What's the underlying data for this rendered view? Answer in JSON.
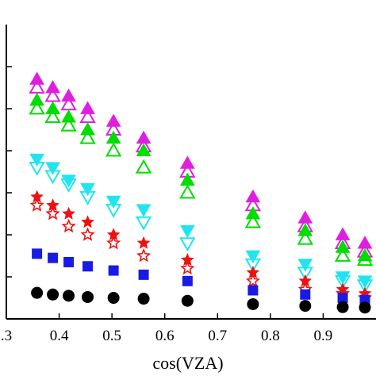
{
  "chart_data": {
    "type": "scatter",
    "xlabel": "cos(VZA)",
    "ylabel": "",
    "xlim": [
      0.3,
      1.0
    ],
    "ylim": [
      0.0,
      0.7
    ],
    "x_ticks": [
      0.3,
      0.4,
      0.5,
      0.6,
      0.7,
      0.8,
      0.9
    ],
    "x_tick_labels": [
      ".3",
      "0.4",
      "0.5",
      "0.6",
      "0.7",
      "0.8",
      "0.9"
    ],
    "y_ticks": [
      0.1,
      0.2,
      0.3,
      0.4,
      0.5,
      0.6
    ],
    "grid": false,
    "x": [
      0.358,
      0.388,
      0.418,
      0.454,
      0.503,
      0.56,
      0.643,
      0.767,
      0.866,
      0.937,
      0.979
    ],
    "series": [
      {
        "marker": "triangle-up-filled",
        "color": "#e01ee0",
        "values": [
          0.57,
          0.55,
          0.53,
          0.5,
          0.47,
          0.43,
          0.37,
          0.29,
          0.24,
          0.2,
          0.18
        ]
      },
      {
        "marker": "triangle-up-open",
        "color": "#e01ee0",
        "values": [
          0.55,
          0.53,
          0.51,
          0.48,
          0.45,
          0.41,
          0.35,
          0.27,
          0.22,
          0.18,
          0.16
        ]
      },
      {
        "marker": "triangle-up-filled",
        "color": "#00dd00",
        "values": [
          0.52,
          0.5,
          0.48,
          0.45,
          0.43,
          0.4,
          0.33,
          0.25,
          0.21,
          0.17,
          0.15
        ]
      },
      {
        "marker": "triangle-up-open",
        "color": "#00dd00",
        "values": [
          0.5,
          0.48,
          0.46,
          0.43,
          0.4,
          0.36,
          0.3,
          0.23,
          0.19,
          0.15,
          0.14
        ]
      },
      {
        "marker": "triangle-down-filled",
        "color": "#22e4f0",
        "values": [
          0.38,
          0.36,
          0.33,
          0.31,
          0.28,
          0.26,
          0.21,
          0.15,
          0.13,
          0.1,
          0.09
        ]
      },
      {
        "marker": "triangle-down-open",
        "color": "#22e4f0",
        "values": [
          0.36,
          0.34,
          0.32,
          0.29,
          0.26,
          0.23,
          0.18,
          0.13,
          0.11,
          0.09,
          0.08
        ]
      },
      {
        "marker": "star-filled",
        "color": "#ee1111",
        "values": [
          0.29,
          0.27,
          0.25,
          0.23,
          0.2,
          0.18,
          0.14,
          0.11,
          0.09,
          0.07,
          0.06
        ]
      },
      {
        "marker": "star-open",
        "color": "#ee1111",
        "values": [
          0.27,
          0.25,
          0.22,
          0.2,
          0.18,
          0.15,
          0.12,
          0.09,
          0.07,
          0.06,
          0.05
        ]
      },
      {
        "marker": "square-filled",
        "color": "#1a1ae6",
        "values": [
          0.155,
          0.145,
          0.135,
          0.125,
          0.115,
          0.105,
          0.09,
          0.068,
          0.058,
          0.05,
          0.045
        ]
      },
      {
        "marker": "circle-filled",
        "color": "#000000",
        "values": [
          0.062,
          0.058,
          0.055,
          0.052,
          0.05,
          0.048,
          0.043,
          0.035,
          0.031,
          0.028,
          0.027
        ]
      }
    ]
  }
}
